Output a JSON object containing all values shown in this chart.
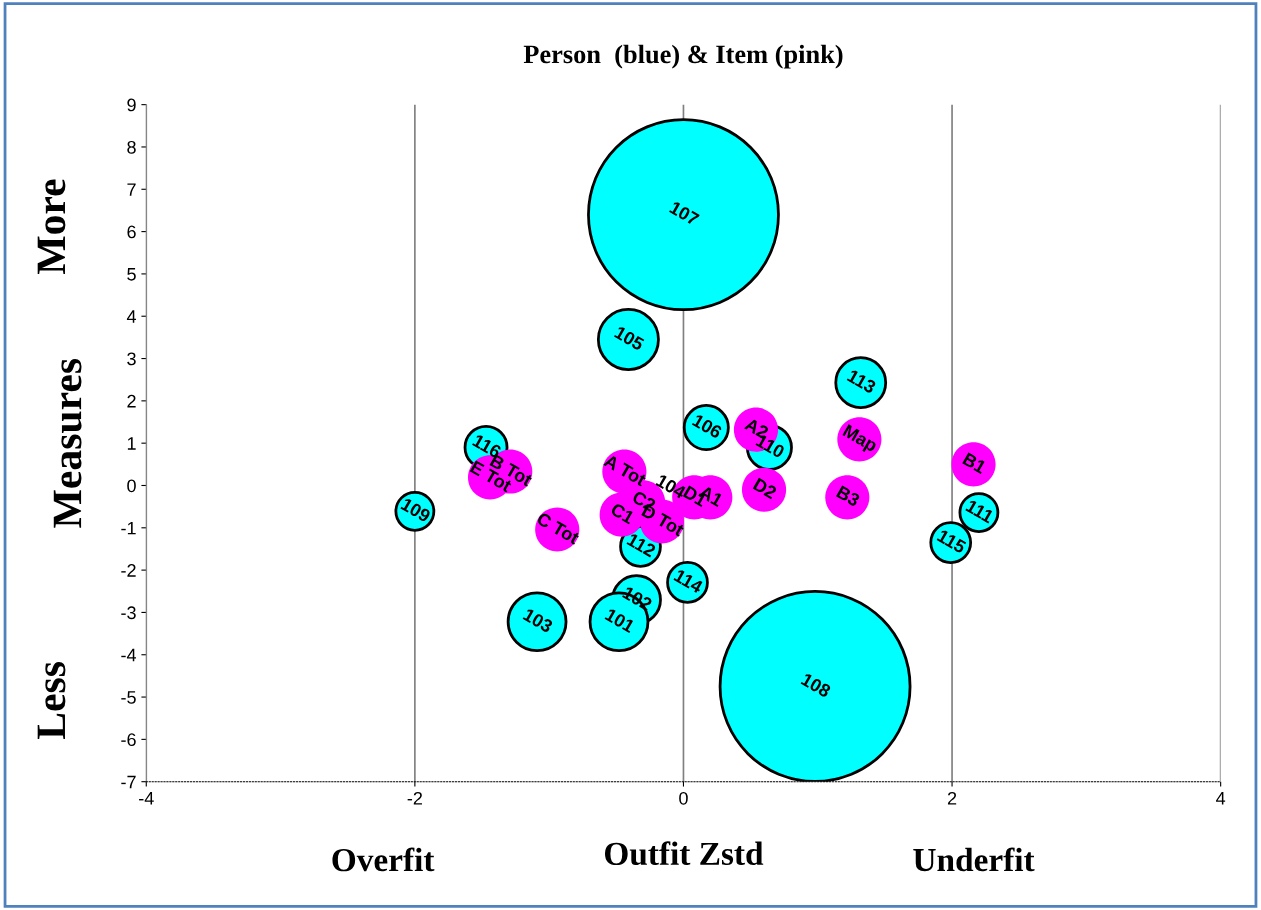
{
  "chart_data": {
    "type": "bubble",
    "title": "Person  (blue) & Item (pink)",
    "xlabel": "Outfit Zstd",
    "ylabel": "Measures",
    "annotations": [
      "More",
      "Less",
      "Overfit",
      "Underfit",
      {
        "text": "107",
        "x": 0.0,
        "y": 6.4
      },
      {
        "text": "105",
        "x": -0.41,
        "y": 3.45
      },
      {
        "text": "113",
        "x": 1.32,
        "y": 2.43
      },
      {
        "text": "106",
        "x": 0.17,
        "y": 1.37
      },
      {
        "text": "110",
        "x": 0.64,
        "y": 0.9
      },
      {
        "text": "116",
        "x": -1.47,
        "y": 0.9
      },
      {
        "text": "109",
        "x": -2.0,
        "y": -0.61
      },
      {
        "text": "111",
        "x": 2.2,
        "y": -0.64
      },
      {
        "text": "115",
        "x": 1.99,
        "y": -1.35
      },
      {
        "text": "104",
        "x": -0.1,
        "y": -0.05
      },
      {
        "text": "112",
        "x": -0.32,
        "y": -1.44
      },
      {
        "text": "114",
        "x": 0.03,
        "y": -2.29
      },
      {
        "text": "102",
        "x": -0.35,
        "y": -2.7
      },
      {
        "text": "101",
        "x": -0.48,
        "y": -3.22
      },
      {
        "text": "103",
        "x": -1.09,
        "y": -3.22
      },
      {
        "text": "108",
        "x": 0.98,
        "y": -4.75
      },
      {
        "text": "A2",
        "x": 0.54,
        "y": 1.32
      },
      {
        "text": "Map",
        "x": 1.31,
        "y": 1.09
      },
      {
        "text": "B1",
        "x": 2.16,
        "y": 0.5
      },
      {
        "text": "D2",
        "x": 0.6,
        "y": -0.1
      },
      {
        "text": "B3",
        "x": 1.22,
        "y": -0.28
      },
      {
        "text": "A1",
        "x": 0.2,
        "y": -0.28
      },
      {
        "text": "D1",
        "x": 0.08,
        "y": -0.28
      },
      {
        "text": "A Tot",
        "x": -0.44,
        "y": 0.33
      },
      {
        "text": "C1",
        "x": -0.46,
        "y": -0.69
      },
      {
        "text": "D Tot",
        "x": -0.16,
        "y": -0.85
      },
      {
        "text": "C2",
        "x": -0.3,
        "y": -0.4
      },
      {
        "text": "C Tot",
        "x": -0.94,
        "y": -1.04
      },
      {
        "text": "B Tot",
        "x": -1.29,
        "y": 0.33
      },
      {
        "text": "E Tot",
        "x": -1.44,
        "y": 0.19
      }
    ],
    "xlim": [
      -4,
      4
    ],
    "xticks": [
      -4,
      -2,
      0,
      2,
      4
    ],
    "ylim": [
      -7,
      9
    ],
    "yticks": [
      -7,
      -6,
      -5,
      -4,
      -3,
      -2,
      -1,
      0,
      1,
      2,
      3,
      4,
      5,
      6,
      7,
      8,
      9
    ],
    "grid": "x",
    "legend": false,
    "series": [
      {
        "color": "#00ffff",
        "x": [
          0.0,
          -0.41,
          1.32,
          0.17,
          0.64,
          -1.47,
          -2.0,
          2.2,
          1.99,
          -0.32,
          0.03,
          -0.35,
          -0.48,
          -1.09,
          0.98
        ],
        "values": [
          6.4,
          3.45,
          2.43,
          1.37,
          0.9,
          0.9,
          -0.61,
          -0.64,
          -1.35,
          -1.44,
          -2.29,
          -2.7,
          -3.22,
          -3.22,
          -4.75
        ],
        "sizes": [
          1,
          0.1,
          0.069,
          0.054,
          0.054,
          0.049,
          0.04,
          0.04,
          0.044,
          0.044,
          0.044,
          0.064,
          0.093,
          0.093,
          1
        ]
      },
      {
        "color": "#ff00ff",
        "x": [
          0.54,
          1.31,
          2.16,
          0.6,
          1.22,
          0.2,
          0.08,
          -0.44,
          -0.46,
          -0.16,
          -0.3,
          -0.94,
          -1.29,
          -1.44
        ],
        "values": [
          1.32,
          1.09,
          0.5,
          -0.1,
          -0.28,
          -0.28,
          -0.28,
          0.33,
          -0.69,
          -0.85,
          -0.4,
          -1.04,
          0.33,
          0.19
        ],
        "sizes": [
          0.054,
          0.054,
          0.054,
          0.054,
          0.054,
          0.054,
          0.054,
          0.054,
          0.054,
          0.054,
          0.054,
          0.054,
          0.054,
          0.054
        ]
      }
    ]
  }
}
